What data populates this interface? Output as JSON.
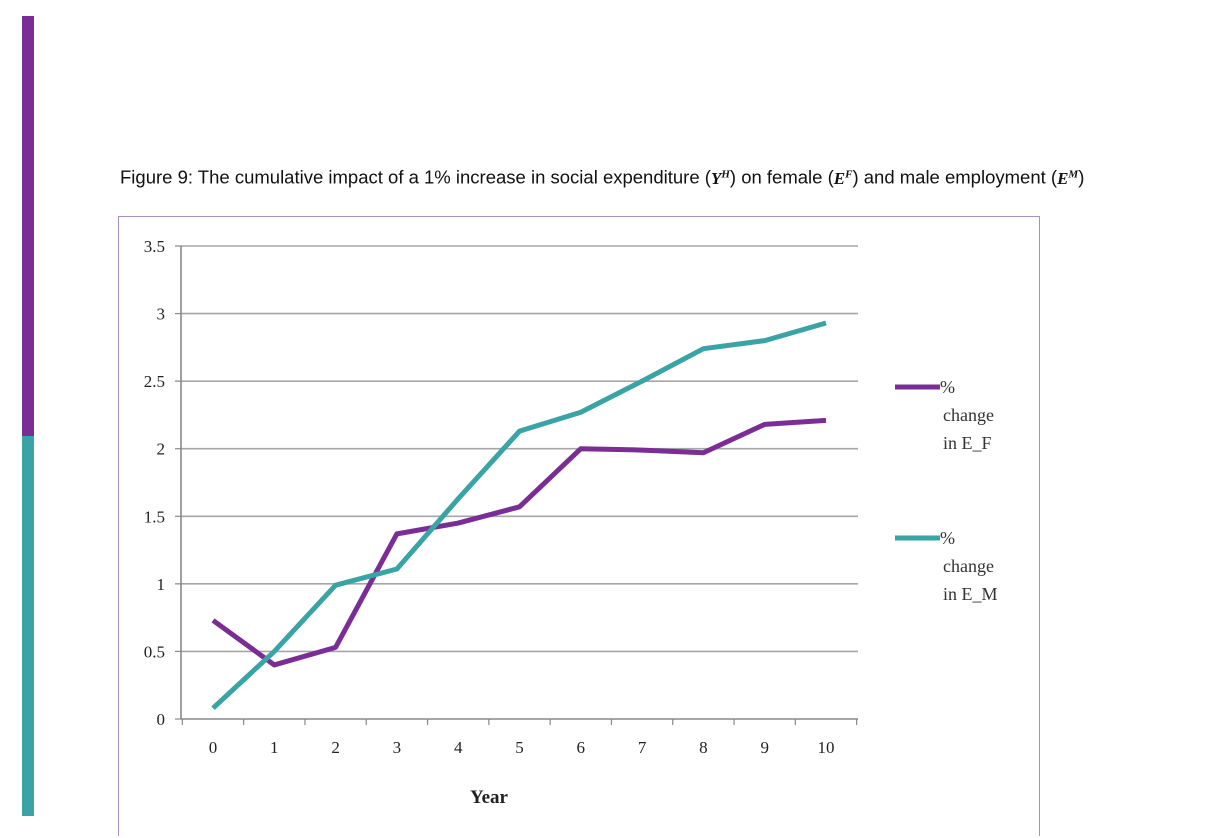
{
  "page": {
    "sidebar_colors": {
      "top": "#7b2d96",
      "bottom": "#3aa3a5"
    }
  },
  "caption": {
    "prefix": "Figure 9: The cumulative impact of a 1% increase in social expenditure (",
    "y_sym": "Y",
    "y_sup": "H",
    "mid1": ") on female (",
    "ef_sym": "E",
    "ef_sup": "F",
    "mid2": ") and male employment (",
    "em_sym": "E",
    "em_sup": "M",
    "suffix": ")"
  },
  "chart_data": {
    "type": "line",
    "title": "",
    "xlabel": "Year",
    "ylabel": "",
    "categories": [
      "0",
      "1",
      "2",
      "3",
      "4",
      "5",
      "6",
      "7",
      "8",
      "9",
      "10"
    ],
    "ylim": [
      0,
      3.5
    ],
    "yticks": [
      "0",
      "0.5",
      "1",
      "1.5",
      "2",
      "2.5",
      "3",
      "3.5"
    ],
    "grid": true,
    "legend_position": "right",
    "series": [
      {
        "name": "% change in E_F",
        "legend_lines": [
          "%",
          "change",
          "in E_F"
        ],
        "color": "#7b2d96",
        "values": [
          0.73,
          0.4,
          0.53,
          1.37,
          1.45,
          1.57,
          2.0,
          1.99,
          1.97,
          2.18,
          2.21
        ]
      },
      {
        "name": "% change in E_M",
        "legend_lines": [
          "%",
          "change",
          "in E_M"
        ],
        "color": "#3aa3a5",
        "values": [
          0.08,
          0.5,
          0.99,
          1.11,
          1.63,
          2.13,
          2.27,
          2.5,
          2.74,
          2.8,
          2.93
        ]
      }
    ]
  }
}
